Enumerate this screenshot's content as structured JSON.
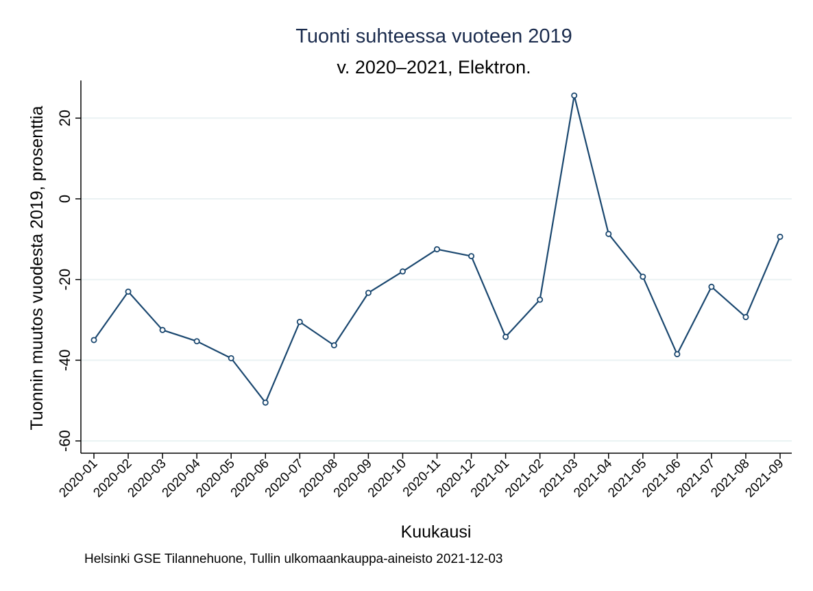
{
  "chart_data": {
    "type": "line",
    "title": "Tuonti suhteessa vuoteen 2019",
    "subtitle": "v. 2020–2021, Elektron.",
    "xlabel": "Kuukausi",
    "ylabel": "Tuonnin muutos vuodesta 2019, prosenttia",
    "note": "Helsinki GSE Tilannehuone, Tullin ulkomaankauppa-aineisto 2021-12-03",
    "categories": [
      "2020-01",
      "2020-02",
      "2020-03",
      "2020-04",
      "2020-05",
      "2020-06",
      "2020-07",
      "2020-08",
      "2020-09",
      "2020-10",
      "2020-11",
      "2020-12",
      "2021-01",
      "2021-02",
      "2021-03",
      "2021-04",
      "2021-05",
      "2021-06",
      "2021-07",
      "2021-08",
      "2021-09"
    ],
    "values": [
      -35,
      -23,
      -32.5,
      -35.3,
      -39.5,
      -50.5,
      -30.5,
      -36.3,
      -23.3,
      -18,
      -12.5,
      -14.2,
      -34.2,
      -25,
      25.6,
      -8.7,
      -19.3,
      -38.5,
      -21.8,
      -29.3,
      -9.4
    ],
    "yticks": [
      20,
      0,
      -20,
      -40,
      -60
    ],
    "ylim": [
      -63,
      29
    ],
    "grid": true,
    "colors": {
      "line": "#1a476f",
      "title": "#1a2b4d",
      "grid": "#eaf2f3",
      "axis": "#000000"
    }
  }
}
